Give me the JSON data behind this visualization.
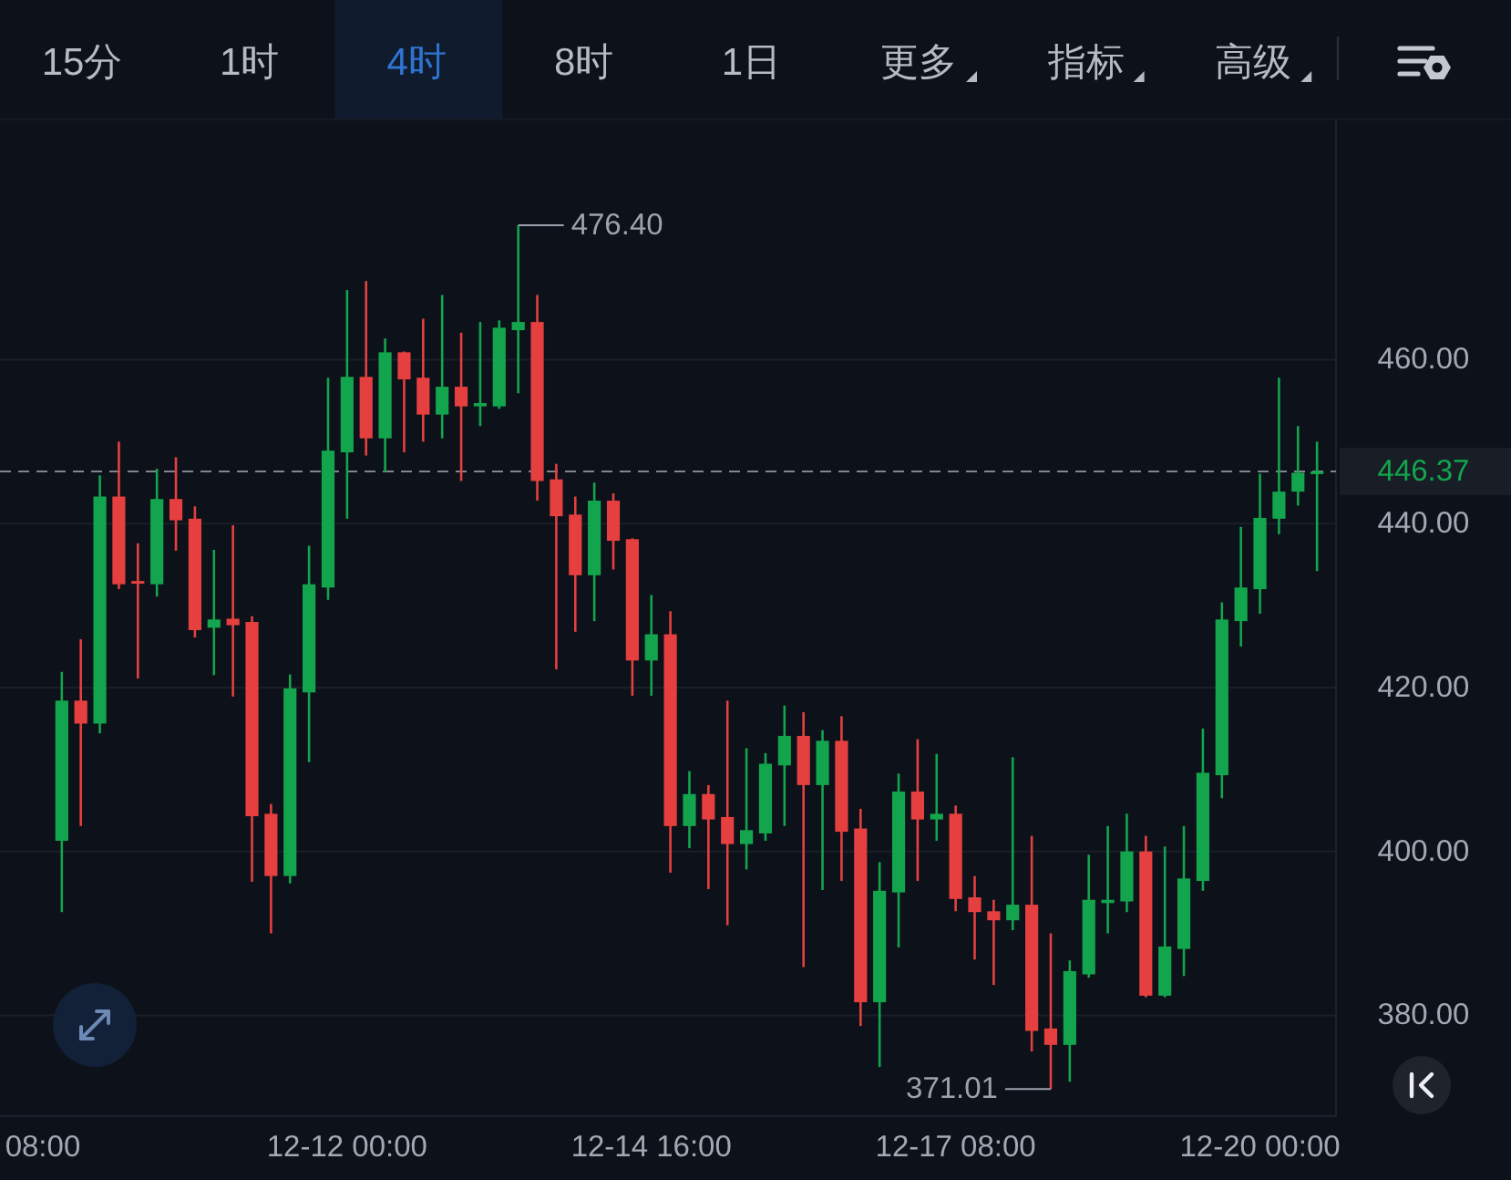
{
  "chart_data": {
    "type": "candlestick",
    "x": [
      "--12-09T12:00",
      "--12-09T16:00",
      "--12-09T20:00",
      "--12-10T00:00",
      "--12-10T04:00",
      "--12-10T08:00",
      "--12-10T12:00",
      "--12-10T16:00",
      "--12-10T20:00",
      "--12-11T00:00",
      "--12-11T04:00",
      "--12-11T08:00",
      "--12-11T12:00",
      "--12-11T16:00",
      "--12-11T20:00",
      "--12-12T00:00",
      "--12-12T04:00",
      "--12-12T08:00",
      "--12-12T12:00",
      "--12-12T16:00",
      "--12-12T20:00",
      "--12-13T00:00",
      "--12-13T04:00",
      "--12-13T08:00",
      "--12-13T12:00",
      "--12-13T16:00",
      "--12-13T20:00",
      "--12-14T00:00",
      "--12-14T04:00",
      "--12-14T08:00",
      "--12-14T12:00",
      "--12-14T16:00",
      "--12-14T20:00",
      "--12-15T00:00",
      "--12-15T04:00",
      "--12-15T08:00",
      "--12-15T12:00",
      "--12-15T16:00",
      "--12-15T20:00",
      "--12-16T00:00",
      "--12-16T04:00",
      "--12-16T08:00",
      "--12-16T12:00",
      "--12-16T16:00",
      "--12-16T20:00",
      "--12-17T00:00",
      "--12-17T04:00",
      "--12-17T08:00",
      "--12-17T12:00",
      "--12-17T16:00",
      "--12-17T20:00",
      "--12-18T00:00",
      "--12-18T04:00",
      "--12-18T08:00",
      "--12-18T12:00",
      "--12-18T16:00",
      "--12-18T20:00",
      "--12-19T00:00",
      "--12-19T04:00",
      "--12-19T08:00",
      "--12-19T12:00",
      "--12-19T16:00",
      "--12-19T20:00",
      "--12-20T00:00",
      "--12-20T04:00",
      "--12-20T08:00",
      "--12-20T12:00"
    ],
    "ohlc": [
      [
        401.3,
        421.9,
        392.6,
        418.4
      ],
      [
        418.4,
        425.9,
        403.1,
        415.6
      ],
      [
        415.6,
        445.9,
        414.4,
        443.3
      ],
      [
        443.3,
        450.0,
        432.0,
        432.6
      ],
      [
        433.0,
        437.6,
        421.1,
        432.7
      ],
      [
        432.6,
        446.7,
        431.1,
        443.0
      ],
      [
        443.0,
        448.1,
        436.7,
        440.4
      ],
      [
        440.6,
        442.1,
        426.1,
        427.0
      ],
      [
        427.3,
        436.8,
        421.5,
        428.3
      ],
      [
        428.4,
        439.8,
        418.9,
        427.6
      ],
      [
        428.0,
        428.7,
        396.3,
        404.3
      ],
      [
        404.6,
        405.8,
        390.0,
        397.0
      ],
      [
        397.0,
        421.6,
        396.1,
        419.9
      ],
      [
        419.4,
        437.3,
        410.9,
        432.6
      ],
      [
        432.2,
        457.8,
        430.7,
        448.9
      ],
      [
        448.7,
        468.5,
        440.6,
        457.9
      ],
      [
        457.9,
        469.6,
        448.3,
        450.4
      ],
      [
        450.4,
        462.6,
        446.3,
        460.9
      ],
      [
        460.9,
        461.0,
        448.7,
        457.6
      ],
      [
        457.8,
        465.0,
        450.0,
        453.3
      ],
      [
        453.3,
        467.9,
        450.4,
        456.7
      ],
      [
        456.7,
        463.3,
        445.2,
        454.3
      ],
      [
        454.3,
        464.6,
        451.9,
        454.7
      ],
      [
        454.3,
        464.8,
        454.0,
        463.9
      ],
      [
        463.6,
        476.4,
        455.9,
        464.6
      ],
      [
        464.6,
        467.9,
        442.8,
        445.2
      ],
      [
        445.4,
        447.3,
        422.2,
        440.9
      ],
      [
        441.1,
        443.3,
        426.8,
        433.7
      ],
      [
        433.7,
        445.0,
        428.1,
        442.8
      ],
      [
        442.8,
        443.7,
        434.4,
        437.9
      ],
      [
        438.1,
        438.2,
        419.0,
        423.3
      ],
      [
        423.3,
        431.3,
        419.0,
        426.5
      ],
      [
        426.5,
        429.3,
        397.4,
        403.1
      ],
      [
        403.1,
        409.8,
        400.4,
        407.0
      ],
      [
        407.0,
        408.1,
        395.4,
        403.9
      ],
      [
        404.2,
        418.4,
        391.0,
        400.9
      ],
      [
        400.9,
        412.6,
        397.8,
        402.6
      ],
      [
        402.2,
        412.0,
        401.3,
        410.7
      ],
      [
        410.5,
        417.8,
        403.1,
        414.1
      ],
      [
        414.1,
        417.0,
        385.9,
        408.1
      ],
      [
        408.1,
        414.8,
        395.3,
        413.5
      ],
      [
        413.5,
        416.5,
        396.4,
        402.4
      ],
      [
        402.8,
        405.2,
        378.7,
        381.6
      ],
      [
        381.6,
        398.7,
        373.7,
        395.2
      ],
      [
        395.0,
        409.5,
        388.3,
        407.3
      ],
      [
        407.3,
        413.7,
        396.4,
        403.9
      ],
      [
        403.9,
        411.9,
        401.3,
        404.6
      ],
      [
        404.6,
        405.6,
        392.7,
        394.2
      ],
      [
        394.4,
        397.0,
        386.8,
        392.6
      ],
      [
        392.7,
        394.1,
        383.7,
        391.6
      ],
      [
        391.6,
        411.5,
        390.4,
        393.5
      ],
      [
        393.5,
        401.9,
        375.6,
        378.1
      ],
      [
        378.4,
        390.0,
        371.01,
        376.4
      ],
      [
        376.4,
        386.7,
        371.9,
        385.4
      ],
      [
        385.0,
        399.6,
        384.6,
        394.1
      ],
      [
        393.7,
        403.1,
        390.0,
        394.1
      ],
      [
        393.9,
        404.6,
        392.6,
        400.0
      ],
      [
        400.0,
        401.9,
        382.2,
        382.4
      ],
      [
        382.4,
        400.6,
        382.2,
        388.4
      ],
      [
        388.1,
        403.1,
        384.8,
        396.7
      ],
      [
        396.4,
        415.0,
        395.2,
        409.6
      ],
      [
        409.3,
        430.4,
        406.5,
        428.3
      ],
      [
        428.1,
        439.6,
        425.0,
        432.2
      ],
      [
        432.0,
        446.1,
        429.0,
        440.7
      ],
      [
        440.6,
        457.8,
        438.7,
        443.9
      ],
      [
        443.9,
        451.9,
        442.2,
        446.2
      ],
      [
        446.2,
        450.0,
        434.2,
        446.37
      ]
    ],
    "xlim": [
      "--12-08T23:00",
      "--12-20T16:00"
    ],
    "xticks": [
      {
        "value": "--12-09T08:00",
        "label": "08:00"
      },
      {
        "value": "--12-12T00:00",
        "label": "12-12 00:00"
      },
      {
        "value": "--12-14T16:00",
        "label": "12-14 16:00"
      },
      {
        "value": "--12-17T08:00",
        "label": "12-17 08:00"
      },
      {
        "value": "--12-20T00:00",
        "label": "12-20 00:00"
      }
    ],
    "ylim": [
      367.7,
      489.2
    ],
    "yticks": [
      {
        "value": 380,
        "label": "380.00"
      },
      {
        "value": 400,
        "label": "400.00"
      },
      {
        "value": 420,
        "label": "420.00"
      },
      {
        "value": 440,
        "label": "440.00"
      },
      {
        "value": 460,
        "label": "460.00"
      }
    ],
    "grid": "y",
    "ref_lines": [
      {
        "axis": "y",
        "value": 446.37,
        "label": "446.37",
        "color": "#80858f",
        "line_style": "dashed"
      }
    ],
    "annotations": [
      "15分",
      "1时",
      "4时",
      "8时",
      "1日",
      "更多",
      "指标",
      "高级",
      {
        "text": "476.40",
        "x": "--12-13T12:00",
        "y": 476.4
      },
      {
        "text": "371.01",
        "x": "--12-18T04:00",
        "y": 371.01
      }
    ]
  }
}
